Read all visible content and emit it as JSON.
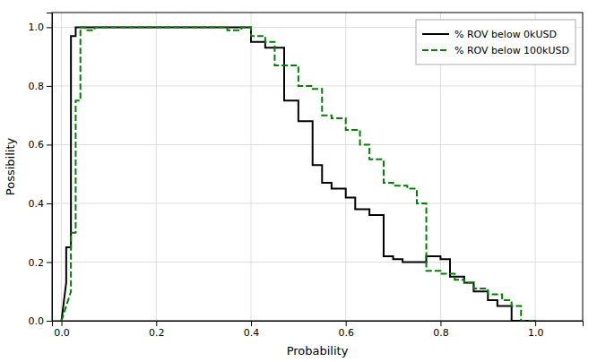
{
  "chart_data": {
    "type": "line",
    "xlabel": "Probability",
    "ylabel": "Possibility",
    "xlim": [
      -0.02,
      1.1
    ],
    "ylim": [
      0.0,
      1.05
    ],
    "xticks": [
      {
        "value": 0.0,
        "label": "0.0"
      },
      0.2,
      0.4,
      0.6,
      0.8,
      {
        "value": 1.0,
        "label": "1.0"
      }
    ],
    "yticks": [
      {
        "value": 0.0,
        "label": "0.0"
      },
      0.2,
      0.4,
      0.6,
      0.8,
      {
        "value": 1.0,
        "label": "1.0"
      }
    ],
    "grid": true,
    "legend": "upper right",
    "series": [
      {
        "name": "% ROV below 0kUSD",
        "color": "#000000",
        "line_style": "solid",
        "x": [
          0.0,
          0.0,
          0.01,
          0.01,
          0.02,
          0.02,
          0.03,
          0.03,
          0.4,
          0.4,
          0.43,
          0.43,
          0.47,
          0.47,
          0.5,
          0.5,
          0.53,
          0.53,
          0.55,
          0.55,
          0.57,
          0.57,
          0.6,
          0.6,
          0.62,
          0.62,
          0.65,
          0.65,
          0.68,
          0.68,
          0.7,
          0.7,
          0.72,
          0.72,
          0.75,
          0.75,
          0.77,
          0.77,
          0.8,
          0.8,
          0.82,
          0.82,
          0.85,
          0.85,
          0.87,
          0.87,
          0.9,
          0.9,
          0.92,
          0.92,
          0.95,
          0.95,
          1.0
        ],
        "values": [
          0.0,
          0.0,
          0.13,
          0.25,
          0.25,
          0.97,
          0.97,
          1.0,
          1.0,
          0.95,
          0.95,
          0.93,
          0.93,
          0.75,
          0.75,
          0.68,
          0.68,
          0.53,
          0.53,
          0.47,
          0.47,
          0.45,
          0.45,
          0.42,
          0.42,
          0.38,
          0.38,
          0.36,
          0.36,
          0.22,
          0.22,
          0.21,
          0.21,
          0.2,
          0.2,
          0.2,
          0.2,
          0.22,
          0.22,
          0.21,
          0.21,
          0.15,
          0.15,
          0.13,
          0.13,
          0.1,
          0.1,
          0.07,
          0.07,
          0.05,
          0.05,
          0.0,
          0.0
        ]
      },
      {
        "name": "% ROV below 100kUSD",
        "color": "#008000",
        "line_style": "dashed",
        "x": [
          0.0,
          0.0,
          0.02,
          0.02,
          0.03,
          0.03,
          0.04,
          0.04,
          0.05,
          0.05,
          0.07,
          0.07,
          0.35,
          0.35,
          0.38,
          0.38,
          0.4,
          0.4,
          0.43,
          0.43,
          0.45,
          0.45,
          0.5,
          0.5,
          0.53,
          0.53,
          0.55,
          0.55,
          0.57,
          0.57,
          0.6,
          0.6,
          0.63,
          0.63,
          0.65,
          0.65,
          0.68,
          0.68,
          0.7,
          0.7,
          0.73,
          0.73,
          0.75,
          0.75,
          0.77,
          0.77,
          0.8,
          0.8,
          0.83,
          0.83,
          0.85,
          0.85,
          0.87,
          0.87,
          0.9,
          0.9,
          0.93,
          0.93,
          0.95,
          0.95,
          0.97,
          0.97,
          1.0,
          1.0
        ],
        "values": [
          0.0,
          0.0,
          0.1,
          0.3,
          0.3,
          0.75,
          0.75,
          1.0,
          1.0,
          0.99,
          0.99,
          1.0,
          1.0,
          0.99,
          0.99,
          1.0,
          1.0,
          0.97,
          0.97,
          0.95,
          0.95,
          0.87,
          0.87,
          0.8,
          0.8,
          0.79,
          0.79,
          0.7,
          0.7,
          0.69,
          0.69,
          0.65,
          0.65,
          0.6,
          0.6,
          0.55,
          0.55,
          0.47,
          0.47,
          0.46,
          0.46,
          0.45,
          0.45,
          0.4,
          0.4,
          0.17,
          0.17,
          0.16,
          0.16,
          0.14,
          0.14,
          0.13,
          0.13,
          0.11,
          0.11,
          0.09,
          0.09,
          0.07,
          0.07,
          0.05,
          0.05,
          0.0,
          0.0,
          0.0
        ]
      }
    ]
  }
}
